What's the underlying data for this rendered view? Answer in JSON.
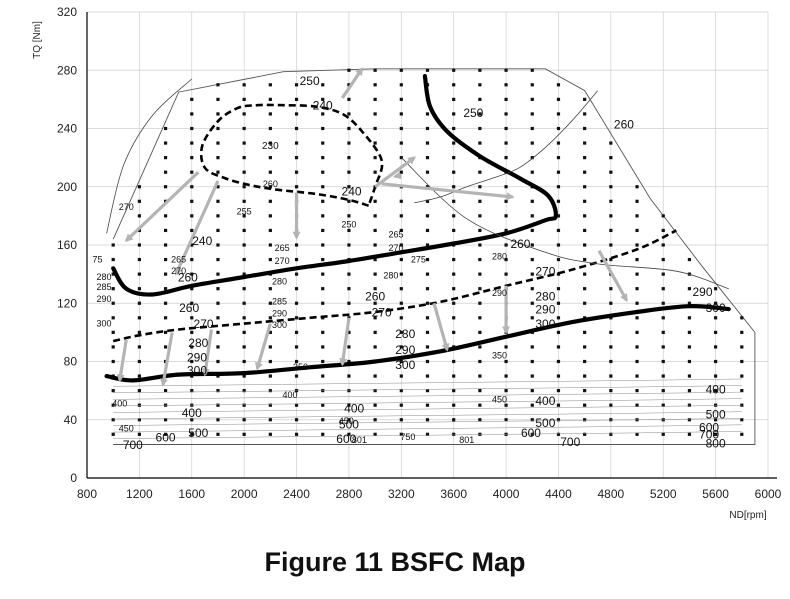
{
  "caption": "Figure 11 BSFC Map",
  "chart_data": {
    "type": "contour",
    "xlabel": "ND[rpm]",
    "ylabel": "TQ [Nm]",
    "xlim": [
      800,
      6000
    ],
    "ylim": [
      0,
      320
    ],
    "x_ticks": [
      800,
      1200,
      1600,
      2000,
      2400,
      2800,
      3200,
      3600,
      4000,
      4400,
      4800,
      5200,
      5600,
      6000
    ],
    "y_ticks": [
      0,
      40,
      80,
      120,
      160,
      200,
      240,
      280,
      320
    ],
    "grid": true,
    "boundary": [
      [
        1000,
        164
      ],
      [
        1500,
        265
      ],
      [
        2300,
        279
      ],
      [
        3000,
        281
      ],
      [
        3200,
        281
      ],
      [
        3700,
        281
      ],
      [
        4300,
        281
      ],
      [
        4600,
        266
      ],
      [
        5100,
        192
      ],
      [
        5500,
        145
      ],
      [
        5900,
        100
      ],
      [
        5900,
        23
      ],
      [
        1000,
        23
      ]
    ],
    "contours": [
      {
        "level": "250",
        "style": "thick",
        "points": [
          [
            3380,
            276
          ],
          [
            3420,
            255
          ],
          [
            3550,
            238
          ],
          [
            3800,
            221
          ],
          [
            4100,
            206
          ],
          [
            4320,
            194
          ],
          [
            4380,
            180
          ],
          [
            4300,
            177
          ],
          [
            4000,
            168
          ],
          [
            3600,
            161
          ],
          [
            3200,
            155
          ],
          [
            2800,
            149
          ],
          [
            2400,
            144
          ],
          [
            2000,
            138
          ],
          [
            1600,
            132
          ],
          [
            1300,
            126
          ],
          [
            1100,
            130
          ],
          [
            1000,
            144
          ]
        ]
      },
      {
        "level": "300",
        "style": "thick",
        "points": [
          [
            950,
            70
          ],
          [
            1150,
            67
          ],
          [
            1500,
            71
          ],
          [
            2000,
            72
          ],
          [
            2500,
            76
          ],
          [
            3000,
            80
          ],
          [
            3500,
            87
          ],
          [
            4000,
            97
          ],
          [
            4500,
            107
          ],
          [
            5000,
            114
          ],
          [
            5400,
            118
          ],
          [
            5700,
            116
          ]
        ]
      },
      {
        "level": "240",
        "style": "dashed",
        "points": [
          [
            2950,
            187
          ],
          [
            2800,
            191
          ],
          [
            2550,
            195
          ],
          [
            2250,
            198
          ],
          [
            2050,
            201
          ],
          [
            1850,
            206
          ],
          [
            1700,
            213
          ],
          [
            1680,
            228
          ],
          [
            1800,
            245
          ],
          [
            1950,
            254
          ],
          [
            2100,
            256
          ],
          [
            2300,
            256
          ],
          [
            2550,
            255
          ],
          [
            2750,
            250
          ],
          [
            2900,
            238
          ],
          [
            3050,
            218
          ],
          [
            3000,
            200
          ],
          [
            2950,
            187
          ]
        ]
      },
      {
        "level": "270",
        "style": "dashed",
        "points": [
          [
            1000,
            94
          ],
          [
            1200,
            98
          ],
          [
            1500,
            102
          ],
          [
            2000,
            106
          ],
          [
            2500,
            110
          ],
          [
            3000,
            114
          ],
          [
            3500,
            121
          ],
          [
            4000,
            132
          ],
          [
            4500,
            143
          ],
          [
            5000,
            157
          ],
          [
            5300,
            170
          ]
        ]
      },
      {
        "level": "260",
        "style": "thin",
        "points": [
          [
            4700,
            266
          ],
          [
            4500,
            245
          ],
          [
            4300,
            227
          ],
          [
            4100,
            213
          ],
          [
            3900,
            206
          ],
          [
            3700,
            200
          ],
          [
            3500,
            193
          ],
          [
            3300,
            189
          ]
        ]
      },
      {
        "level": "",
        "style": "thin",
        "points": [
          [
            1600,
            274
          ],
          [
            1300,
            249
          ],
          [
            1080,
            215
          ],
          [
            950,
            168
          ]
        ]
      },
      {
        "level": "",
        "style": "thin",
        "points": [
          [
            3200,
            220
          ],
          [
            3700,
            178
          ],
          [
            4300,
            155
          ],
          [
            4700,
            147
          ],
          [
            5300,
            142
          ],
          [
            5700,
            130
          ]
        ]
      }
    ],
    "contour_labels": [
      {
        "text": "250",
        "x": 2500,
        "y": 270,
        "size": 12
      },
      {
        "text": "240",
        "x": 2600,
        "y": 253,
        "size": 12
      },
      {
        "text": "240",
        "x": 2820,
        "y": 194,
        "size": 12
      },
      {
        "text": "240",
        "x": 1680,
        "y": 160,
        "size": 12
      },
      {
        "text": "230",
        "x": 2200,
        "y": 226,
        "size": 10
      },
      {
        "text": "250",
        "x": 3750,
        "y": 248,
        "size": 12
      },
      {
        "text": "260",
        "x": 4900,
        "y": 240,
        "size": 12
      },
      {
        "text": "260",
        "x": 4110,
        "y": 158,
        "size": 12
      },
      {
        "text": "260",
        "x": 3000,
        "y": 122,
        "size": 12
      },
      {
        "text": "260",
        "x": 1580,
        "y": 114,
        "size": 12
      },
      {
        "text": "260",
        "x": 1570,
        "y": 135,
        "size": 12
      },
      {
        "text": "255",
        "x": 2000,
        "y": 181,
        "size": 9
      },
      {
        "text": "260",
        "x": 2200,
        "y": 200,
        "size": 9
      },
      {
        "text": "250",
        "x": 2800,
        "y": 172,
        "size": 9
      },
      {
        "text": "270",
        "x": 4300,
        "y": 139,
        "size": 12
      },
      {
        "text": "270",
        "x": 3050,
        "y": 111,
        "size": 12
      },
      {
        "text": "270",
        "x": 1690,
        "y": 103,
        "size": 12
      },
      {
        "text": "280",
        "x": 4300,
        "y": 122,
        "size": 12
      },
      {
        "text": "280",
        "x": 3230,
        "y": 96,
        "size": 12
      },
      {
        "text": "280",
        "x": 1650,
        "y": 90,
        "size": 12
      },
      {
        "text": "290",
        "x": 5500,
        "y": 125,
        "size": 12
      },
      {
        "text": "290",
        "x": 4300,
        "y": 113,
        "size": 12
      },
      {
        "text": "290",
        "x": 3230,
        "y": 85,
        "size": 12
      },
      {
        "text": "290",
        "x": 1640,
        "y": 80,
        "size": 12
      },
      {
        "text": "300",
        "x": 5600,
        "y": 114,
        "size": 12
      },
      {
        "text": "300",
        "x": 4300,
        "y": 103,
        "size": 12
      },
      {
        "text": "300",
        "x": 3230,
        "y": 75,
        "size": 12
      },
      {
        "text": "300",
        "x": 1640,
        "y": 71,
        "size": 12
      },
      {
        "text": "350",
        "x": 3950,
        "y": 82,
        "size": 9
      },
      {
        "text": "350",
        "x": 2430,
        "y": 74,
        "size": 9
      },
      {
        "text": "400",
        "x": 5600,
        "y": 58,
        "size": 12
      },
      {
        "text": "400",
        "x": 4300,
        "y": 50,
        "size": 12
      },
      {
        "text": "400",
        "x": 2840,
        "y": 45,
        "size": 12
      },
      {
        "text": "400",
        "x": 1600,
        "y": 42,
        "size": 12
      },
      {
        "text": "400",
        "x": 2350,
        "y": 55,
        "size": 9
      },
      {
        "text": "400",
        "x": 1050,
        "y": 49,
        "size": 9
      },
      {
        "text": "500",
        "x": 5600,
        "y": 41,
        "size": 12
      },
      {
        "text": "500",
        "x": 4300,
        "y": 35,
        "size": 12
      },
      {
        "text": "500",
        "x": 2800,
        "y": 34,
        "size": 12
      },
      {
        "text": "500",
        "x": 1650,
        "y": 28,
        "size": 12
      },
      {
        "text": "600",
        "x": 5550,
        "y": 32,
        "size": 12
      },
      {
        "text": "600",
        "x": 4190,
        "y": 28,
        "size": 12
      },
      {
        "text": "600",
        "x": 2780,
        "y": 24,
        "size": 12
      },
      {
        "text": "600",
        "x": 1400,
        "y": 25,
        "size": 12
      },
      {
        "text": "700",
        "x": 5550,
        "y": 27,
        "size": 12
      },
      {
        "text": "700",
        "x": 4490,
        "y": 22,
        "size": 12
      },
      {
        "text": "700",
        "x": 1150,
        "y": 20,
        "size": 12
      },
      {
        "text": "750",
        "x": 3250,
        "y": 26,
        "size": 9
      },
      {
        "text": "800",
        "x": 5600,
        "y": 21,
        "size": 12
      },
      {
        "text": "801",
        "x": 3700,
        "y": 24,
        "size": 9
      },
      {
        "text": "801",
        "x": 2880,
        "y": 24,
        "size": 9
      },
      {
        "text": "265",
        "x": 1500,
        "y": 148,
        "size": 9
      },
      {
        "text": "270",
        "x": 1500,
        "y": 140,
        "size": 9
      },
      {
        "text": "265",
        "x": 2290,
        "y": 156,
        "size": 9
      },
      {
        "text": "270",
        "x": 2290,
        "y": 147,
        "size": 9
      },
      {
        "text": "265",
        "x": 3160,
        "y": 165,
        "size": 9
      },
      {
        "text": "270",
        "x": 3160,
        "y": 156,
        "size": 9
      },
      {
        "text": "275",
        "x": 3330,
        "y": 148,
        "size": 9
      },
      {
        "text": "280",
        "x": 3950,
        "y": 150,
        "size": 9
      },
      {
        "text": "280",
        "x": 3120,
        "y": 137,
        "size": 9
      },
      {
        "text": "280",
        "x": 2270,
        "y": 133,
        "size": 9
      },
      {
        "text": "290",
        "x": 3950,
        "y": 125,
        "size": 9
      },
      {
        "text": "285",
        "x": 2270,
        "y": 119,
        "size": 9
      },
      {
        "text": "290",
        "x": 2270,
        "y": 111,
        "size": 9
      },
      {
        "text": "300",
        "x": 2270,
        "y": 103,
        "size": 9
      },
      {
        "text": "270",
        "x": 1100,
        "y": 184,
        "size": 9
      },
      {
        "text": "75",
        "x": 880,
        "y": 148,
        "size": 9
      },
      {
        "text": "280",
        "x": 930,
        "y": 136,
        "size": 9
      },
      {
        "text": "285",
        "x": 930,
        "y": 129,
        "size": 9
      },
      {
        "text": "290",
        "x": 930,
        "y": 121,
        "size": 9
      },
      {
        "text": "300",
        "x": 930,
        "y": 104,
        "size": 9
      },
      {
        "text": "450",
        "x": 2780,
        "y": 37,
        "size": 9
      },
      {
        "text": "450",
        "x": 3950,
        "y": 52,
        "size": 9
      },
      {
        "text": "450",
        "x": 1100,
        "y": 32,
        "size": 9
      }
    ],
    "arrows": [
      {
        "from": [
          3000,
          200
        ],
        "to": [
          3300,
          220
        ]
      },
      {
        "from": [
          3050,
          202
        ],
        "to": [
          4050,
          193
        ]
      },
      {
        "from": [
          2750,
          261
        ],
        "to": [
          2900,
          281
        ]
      },
      {
        "from": [
          2400,
          196
        ],
        "to": [
          2400,
          165
        ]
      },
      {
        "from": [
          1800,
          204
        ],
        "to": [
          1480,
          140
        ]
      },
      {
        "from": [
          1650,
          210
        ],
        "to": [
          1100,
          163
        ]
      },
      {
        "from": [
          3200,
          208
        ],
        "to": [
          3150,
          207
        ]
      },
      {
        "from": [
          4710,
          156
        ],
        "to": [
          4920,
          122
        ]
      },
      {
        "from": [
          4000,
          132
        ],
        "to": [
          4000,
          100
        ]
      },
      {
        "from": [
          3450,
          120
        ],
        "to": [
          3550,
          88
        ]
      },
      {
        "from": [
          2800,
          110
        ],
        "to": [
          2750,
          78
        ]
      },
      {
        "from": [
          2200,
          106
        ],
        "to": [
          2100,
          75
        ]
      },
      {
        "from": [
          1750,
          102
        ],
        "to": [
          1700,
          71
        ]
      },
      {
        "from": [
          1450,
          100
        ],
        "to": [
          1380,
          64
        ]
      },
      {
        "from": [
          1100,
          95
        ],
        "to": [
          1050,
          67
        ]
      }
    ],
    "measurement_points": {
      "x": [
        1000,
        1200,
        1400,
        1600,
        1800,
        2000,
        2200,
        2400,
        2600,
        2800,
        3000,
        3200,
        3400,
        3600,
        3800,
        4000,
        4200,
        4400,
        4600,
        4800,
        5000,
        5200,
        5400,
        5600,
        5800,
        5900
      ],
      "y": [
        30,
        40,
        50,
        60,
        70,
        80,
        90,
        100,
        110,
        120,
        130,
        140,
        150,
        160,
        170,
        180,
        190,
        200,
        210,
        220,
        230,
        240,
        250,
        260,
        270,
        280
      ]
    }
  }
}
